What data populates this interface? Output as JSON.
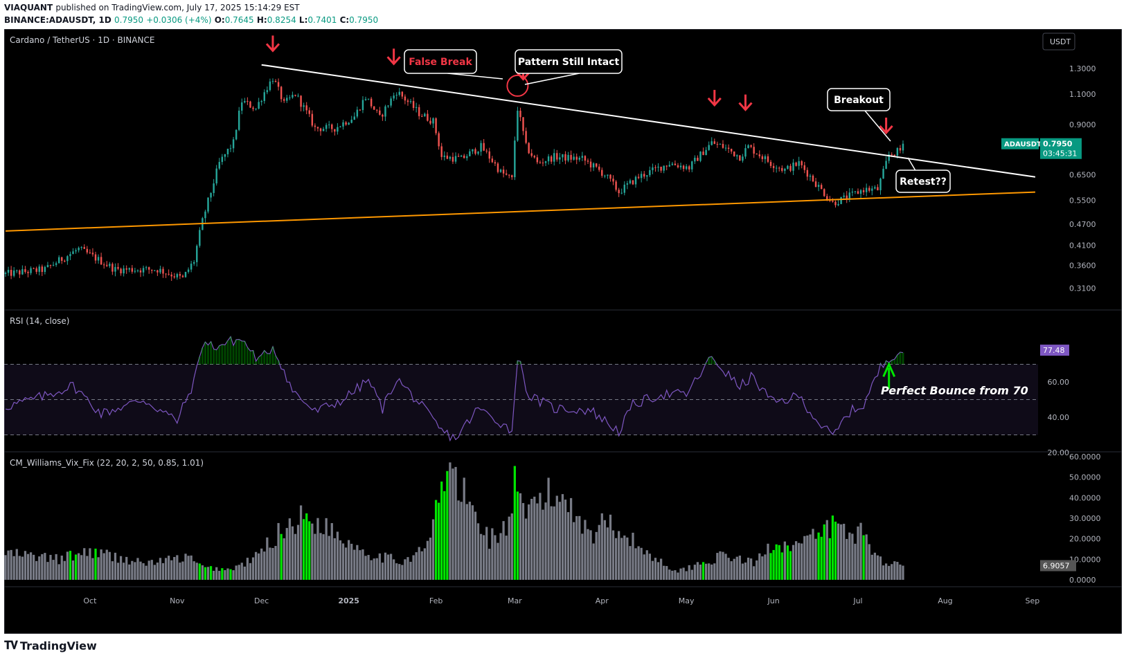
{
  "header": {
    "publisher": "VIAQUANT",
    "published_text": "published on TradingView.com, July 17, 2025 15:14:29 EST",
    "symbol": "BINANCE:ADAUSDT, 1D",
    "last": "0.7950",
    "change": "+0.0306 (+4%)",
    "o_label": "O:",
    "o": "0.7645",
    "h_label": "H:",
    "h": "0.8254",
    "l_label": "L:",
    "l": "0.7401",
    "c_label": "C:",
    "c": "0.7950"
  },
  "footer": {
    "brand": "TradingView"
  },
  "colors": {
    "up": "#26a69a",
    "down": "#ef5350",
    "trend": "#ffffff",
    "support": "#ff9800",
    "rsi": "#7e57c2",
    "vix_gray": "#787b86",
    "vix_green": "#00e600",
    "arrow": "#f23645"
  },
  "chart_data": [
    {
      "type": "candlestick",
      "title": "Cardano / TetherUS · 1D · BINANCE",
      "currency_badge": "USDT",
      "symbol_label": "ADAUSDT",
      "price_label": "0.7950",
      "countdown": "03:45:31",
      "y_scale": "log",
      "ylim": [
        0.27,
        1.62
      ],
      "y_ticks": [
        "1.3000",
        "1.1000",
        "0.9000",
        "0.6500",
        "0.5500",
        "0.4700",
        "0.4100",
        "0.3600",
        "0.3100"
      ],
      "x_ticks": [
        "Oct",
        "Nov",
        "Dec",
        "2025",
        "Feb",
        "Mar",
        "Apr",
        "May",
        "Jun",
        "Jul",
        "Aug",
        "Sep"
      ],
      "x_range": [
        "2024-09-01",
        "2025-09-03"
      ],
      "series_anchor_close": [
        [
          "2024-09-01",
          0.34
        ],
        [
          "2024-09-15",
          0.35
        ],
        [
          "2024-09-27",
          0.4
        ],
        [
          "2024-10-10",
          0.35
        ],
        [
          "2024-10-25",
          0.35
        ],
        [
          "2024-11-03",
          0.33
        ],
        [
          "2024-11-07",
          0.37
        ],
        [
          "2024-11-10",
          0.48
        ],
        [
          "2024-11-13",
          0.58
        ],
        [
          "2024-11-16",
          0.7
        ],
        [
          "2024-11-21",
          0.8
        ],
        [
          "2024-11-24",
          1.05
        ],
        [
          "2024-11-29",
          1.0
        ],
        [
          "2024-12-03",
          1.15
        ],
        [
          "2024-12-05",
          1.22
        ],
        [
          "2024-12-09",
          1.03
        ],
        [
          "2024-12-13",
          1.1
        ],
        [
          "2024-12-20",
          0.88
        ],
        [
          "2024-12-27",
          0.88
        ],
        [
          "2025-01-03",
          0.95
        ],
        [
          "2025-01-07",
          1.08
        ],
        [
          "2025-01-12",
          0.94
        ],
        [
          "2025-01-18",
          1.12
        ],
        [
          "2025-01-26",
          0.97
        ],
        [
          "2025-01-31",
          0.92
        ],
        [
          "2025-02-03",
          0.73
        ],
        [
          "2025-02-10",
          0.72
        ],
        [
          "2025-02-17",
          0.78
        ],
        [
          "2025-02-24",
          0.66
        ],
        [
          "2025-02-28",
          0.63
        ],
        [
          "2025-03-02",
          1.0
        ],
        [
          "2025-03-05",
          0.78
        ],
        [
          "2025-03-09",
          0.7
        ],
        [
          "2025-03-15",
          0.73
        ],
        [
          "2025-03-25",
          0.72
        ],
        [
          "2025-04-02",
          0.65
        ],
        [
          "2025-04-07",
          0.58
        ],
        [
          "2025-04-14",
          0.64
        ],
        [
          "2025-04-25",
          0.7
        ],
        [
          "2025-05-02",
          0.68
        ],
        [
          "2025-05-10",
          0.8
        ],
        [
          "2025-05-14",
          0.78
        ],
        [
          "2025-05-20",
          0.73
        ],
        [
          "2025-05-23",
          0.78
        ],
        [
          "2025-05-31",
          0.7
        ],
        [
          "2025-06-05",
          0.67
        ],
        [
          "2025-06-10",
          0.7
        ],
        [
          "2025-06-17",
          0.6
        ],
        [
          "2025-06-22",
          0.54
        ],
        [
          "2025-06-27",
          0.56
        ],
        [
          "2025-07-03",
          0.59
        ],
        [
          "2025-07-08",
          0.59
        ],
        [
          "2025-07-10",
          0.66
        ],
        [
          "2025-07-12",
          0.74
        ],
        [
          "2025-07-16",
          0.76
        ],
        [
          "2025-07-17",
          0.795
        ]
      ],
      "resistance_line": {
        "from": [
          "2024-12-01",
          1.33
        ],
        "to": [
          "2025-09-02",
          0.64
        ]
      },
      "support_line": {
        "from": [
          "2024-09-01",
          0.45
        ],
        "to": [
          "2025-09-02",
          0.58
        ]
      },
      "reversal_arrows": [
        "2024-12-05",
        "2025-01-17",
        "2025-03-04",
        "2025-05-11",
        "2025-05-22",
        "2025-07-11"
      ],
      "circle_marker": {
        "date": "2025-03-02",
        "value": 1.15
      },
      "annotations": [
        {
          "text": "False Break",
          "color": "#f23645"
        },
        {
          "text": "Pattern Still Intact",
          "color": "#ffffff"
        },
        {
          "text": "Breakout",
          "color": "#ffffff"
        },
        {
          "text": "Retest??",
          "color": "#ffffff"
        }
      ]
    },
    {
      "type": "line",
      "title": "RSI (14, close)",
      "last_value": "77.48",
      "y_ticks": [
        "60.00",
        "40.00",
        "20.00"
      ],
      "ylim": [
        20,
        100
      ],
      "bands": [
        30,
        50,
        70
      ],
      "series_anchor": [
        [
          "2024-09-01",
          46
        ],
        [
          "2024-09-15",
          52
        ],
        [
          "2024-09-25",
          58
        ],
        [
          "2024-10-05",
          42
        ],
        [
          "2024-10-20",
          50
        ],
        [
          "2024-11-01",
          38
        ],
        [
          "2024-11-07",
          60
        ],
        [
          "2024-11-10",
          82
        ],
        [
          "2024-11-15",
          80
        ],
        [
          "2024-11-20",
          83
        ],
        [
          "2024-11-24",
          84
        ],
        [
          "2024-11-30",
          72
        ],
        [
          "2024-12-05",
          80
        ],
        [
          "2024-12-08",
          70
        ],
        [
          "2024-12-12",
          55
        ],
        [
          "2024-12-20",
          43
        ],
        [
          "2024-12-30",
          50
        ],
        [
          "2025-01-08",
          61
        ],
        [
          "2025-01-13",
          45
        ],
        [
          "2025-01-18",
          62
        ],
        [
          "2025-01-26",
          48
        ],
        [
          "2025-02-03",
          32
        ],
        [
          "2025-02-08",
          28
        ],
        [
          "2025-02-16",
          45
        ],
        [
          "2025-02-24",
          37
        ],
        [
          "2025-02-28",
          32
        ],
        [
          "2025-03-02",
          75
        ],
        [
          "2025-03-06",
          52
        ],
        [
          "2025-03-15",
          45
        ],
        [
          "2025-03-28",
          44
        ],
        [
          "2025-04-07",
          32
        ],
        [
          "2025-04-12",
          47
        ],
        [
          "2025-04-22",
          53
        ],
        [
          "2025-05-01",
          53
        ],
        [
          "2025-05-10",
          74
        ],
        [
          "2025-05-14",
          67
        ],
        [
          "2025-05-20",
          57
        ],
        [
          "2025-05-24",
          63
        ],
        [
          "2025-06-01",
          48
        ],
        [
          "2025-06-10",
          52
        ],
        [
          "2025-06-17",
          37
        ],
        [
          "2025-06-22",
          29
        ],
        [
          "2025-06-28",
          43
        ],
        [
          "2025-07-03",
          47
        ],
        [
          "2025-07-09",
          68
        ],
        [
          "2025-07-12",
          74
        ],
        [
          "2025-07-17",
          78
        ]
      ],
      "annotation": {
        "text": "Perfect Bounce from 70",
        "color": "#ffffff"
      }
    },
    {
      "type": "bar",
      "title": "CM_Williams_Vix_Fix (22, 20, 2, 50, 0.85, 1.01)",
      "last_value": "6.9057",
      "y_ticks": [
        "60.0000",
        "50.0000",
        "40.0000",
        "30.0000",
        "20.0000",
        "10.0000",
        "0.0000"
      ],
      "ylim": [
        0,
        60
      ],
      "series_anchor": [
        [
          "2024-09-01",
          13
        ],
        [
          "2024-09-20",
          10
        ],
        [
          "2024-10-01",
          14
        ],
        [
          "2024-10-20",
          8
        ],
        [
          "2024-11-05",
          11
        ],
        [
          "2024-11-10",
          6
        ],
        [
          "2024-11-20",
          5
        ],
        [
          "2024-11-28",
          10
        ],
        [
          "2024-12-08",
          24
        ],
        [
          "2024-12-14",
          30
        ],
        [
          "2024-12-22",
          28
        ],
        [
          "2024-12-30",
          20
        ],
        [
          "2025-01-10",
          12
        ],
        [
          "2025-01-20",
          9
        ],
        [
          "2025-01-29",
          16
        ],
        [
          "2025-02-03",
          45
        ],
        [
          "2025-02-06",
          53
        ],
        [
          "2025-02-12",
          38
        ],
        [
          "2025-02-20",
          20
        ],
        [
          "2025-02-27",
          26
        ],
        [
          "2025-03-01",
          48
        ],
        [
          "2025-03-04",
          30
        ],
        [
          "2025-03-10",
          40
        ],
        [
          "2025-03-20",
          40
        ],
        [
          "2025-03-28",
          22
        ],
        [
          "2025-04-04",
          30
        ],
        [
          "2025-04-09",
          22
        ],
        [
          "2025-04-18",
          12
        ],
        [
          "2025-04-28",
          4
        ],
        [
          "2025-05-06",
          8
        ],
        [
          "2025-05-15",
          12
        ],
        [
          "2025-05-25",
          8
        ],
        [
          "2025-06-01",
          18
        ],
        [
          "2025-06-10",
          17
        ],
        [
          "2025-06-18",
          22
        ],
        [
          "2025-06-22",
          27
        ],
        [
          "2025-06-28",
          22
        ],
        [
          "2025-07-03",
          24
        ],
        [
          "2025-07-08",
          10
        ],
        [
          "2025-07-17",
          7
        ]
      ],
      "green_days": [
        "2024-09-24",
        "2024-09-26",
        "2024-10-03",
        "2024-11-09",
        "2024-11-11",
        "2024-11-13",
        "2024-11-17",
        "2024-11-20",
        "2024-12-08",
        "2024-12-16",
        "2024-12-17",
        "2024-12-18",
        "2025-02-01",
        "2025-02-02",
        "2025-02-03",
        "2025-02-04",
        "2025-02-05",
        "2025-03-01",
        "2025-03-02",
        "2025-05-07",
        "2025-05-31",
        "2025-06-01",
        "2025-06-02",
        "2025-06-03",
        "2025-06-04",
        "2025-06-06",
        "2025-06-07",
        "2025-06-17",
        "2025-06-18",
        "2025-06-19",
        "2025-06-21",
        "2025-06-22",
        "2025-06-23",
        "2025-07-03"
      ]
    }
  ]
}
